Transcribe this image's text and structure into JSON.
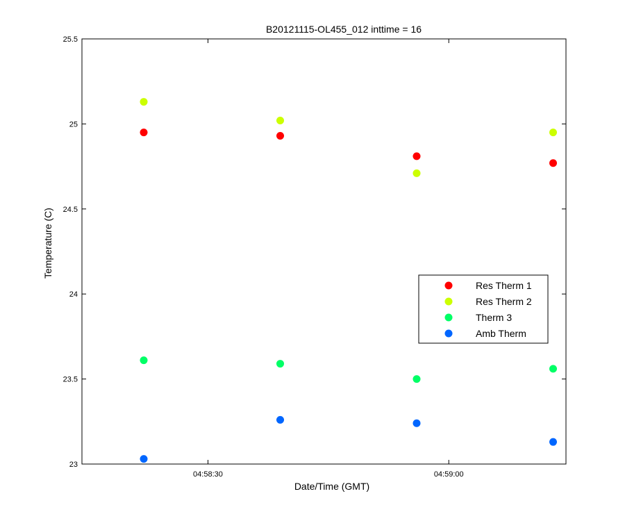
{
  "chart_data": {
    "type": "scatter",
    "title": "B20121115-OL455_012 inttime = 16",
    "xlabel": "Date/Time (GMT)",
    "ylabel": "Temperature (C)",
    "x": [
      "04:58:22",
      "04:58:39",
      "04:58:56",
      "04:59:13"
    ],
    "xlim": [
      "04:58:14.3",
      "04:59:14.6"
    ],
    "ylim": [
      23,
      25.5
    ],
    "x_ticks": [
      "04:58:30",
      "04:59:00"
    ],
    "y_ticks": [
      "23",
      "23.5",
      "24",
      "24.5",
      "25",
      "25.5"
    ],
    "grid": false,
    "legend_position": "center-right",
    "series": [
      {
        "name": "Res Therm 1",
        "color": "#ff0000",
        "values": [
          24.95,
          24.93,
          24.81,
          24.77
        ]
      },
      {
        "name": "Res Therm 2",
        "color": "#ccff00",
        "values": [
          25.13,
          25.02,
          24.71,
          24.95
        ]
      },
      {
        "name": "Therm 3",
        "color": "#00ff66",
        "values": [
          23.61,
          23.59,
          23.5,
          23.56
        ]
      },
      {
        "name": "Amb Therm",
        "color": "#0066ff",
        "values": [
          23.03,
          23.26,
          23.24,
          23.13
        ]
      }
    ]
  }
}
